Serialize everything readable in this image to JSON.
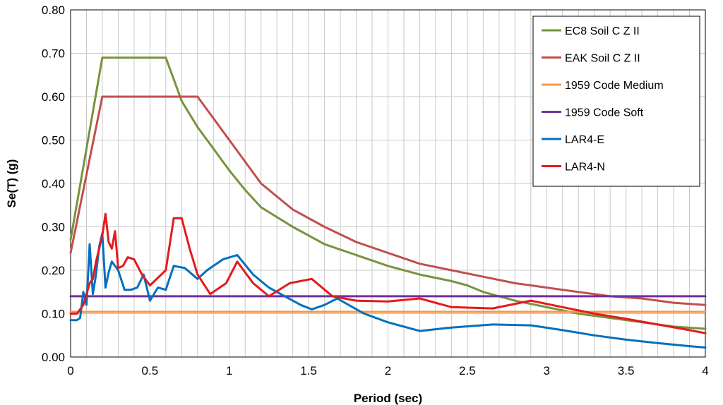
{
  "chart_data": {
    "type": "line",
    "title": "",
    "xlabel": "Period (sec)",
    "ylabel": "Se(T) (g)",
    "xlim": [
      0,
      4
    ],
    "ylim": [
      0,
      0.8
    ],
    "x_ticks": [
      0,
      0.5,
      1,
      1.5,
      2,
      2.5,
      3,
      3.5,
      4
    ],
    "x_tick_labels": [
      "0",
      "0.5",
      "1",
      "1.5",
      "2",
      "2.5",
      "3",
      "3.5",
      "4"
    ],
    "y_ticks": [
      0,
      0.1,
      0.2,
      0.3,
      0.4,
      0.5,
      0.6,
      0.7,
      0.8
    ],
    "y_tick_labels": [
      "0.00",
      "0.10",
      "0.20",
      "0.30",
      "0.40",
      "0.50",
      "0.60",
      "0.70",
      "0.80"
    ],
    "grid": true,
    "minor_x_step": 0.1,
    "legend_position": "top-right",
    "series": [
      {
        "name": "EC8 Soil C Z II",
        "color": "#77933C",
        "x": [
          0,
          0.2,
          0.6,
          0.65,
          0.7,
          0.8,
          0.9,
          1.0,
          1.1,
          1.2,
          1.4,
          1.6,
          1.8,
          2.0,
          2.2,
          2.4,
          2.5,
          2.6,
          2.8,
          3.0,
          3.2,
          3.4,
          3.6,
          3.8,
          4.0
        ],
        "y": [
          0.27,
          0.69,
          0.69,
          0.64,
          0.59,
          0.53,
          0.48,
          0.43,
          0.385,
          0.345,
          0.3,
          0.26,
          0.235,
          0.21,
          0.19,
          0.175,
          0.165,
          0.15,
          0.13,
          0.115,
          0.1,
          0.09,
          0.08,
          0.07,
          0.065
        ]
      },
      {
        "name": "EAK Soil C Z II",
        "color": "#C0504D",
        "x": [
          0,
          0.2,
          0.8,
          0.9,
          1.0,
          1.2,
          1.4,
          1.6,
          1.8,
          2.0,
          2.2,
          2.4,
          2.6,
          2.8,
          3.0,
          3.2,
          3.4,
          3.6,
          3.8,
          4.0
        ],
        "y": [
          0.24,
          0.6,
          0.6,
          0.55,
          0.5,
          0.4,
          0.34,
          0.3,
          0.265,
          0.24,
          0.215,
          0.2,
          0.185,
          0.17,
          0.16,
          0.15,
          0.14,
          0.135,
          0.125,
          0.12
        ]
      },
      {
        "name": "1959 Code Medium",
        "color": "#F79646",
        "x": [
          0,
          4.0
        ],
        "y": [
          0.104,
          0.104
        ]
      },
      {
        "name": "1959 Code Soft",
        "color": "#7030A0",
        "x": [
          0,
          4.0
        ],
        "y": [
          0.14,
          0.14
        ]
      },
      {
        "name": "LAR4-E",
        "color": "#0070C0",
        "x": [
          0,
          0.04,
          0.06,
          0.08,
          0.1,
          0.12,
          0.14,
          0.16,
          0.18,
          0.2,
          0.22,
          0.24,
          0.26,
          0.3,
          0.34,
          0.38,
          0.42,
          0.46,
          0.5,
          0.55,
          0.6,
          0.65,
          0.72,
          0.8,
          0.86,
          0.96,
          1.05,
          1.15,
          1.25,
          1.35,
          1.45,
          1.52,
          1.6,
          1.68,
          1.85,
          2.0,
          2.2,
          2.4,
          2.66,
          2.9,
          3.1,
          3.3,
          3.5,
          3.7,
          3.9,
          4.0
        ],
        "y": [
          0.085,
          0.085,
          0.09,
          0.15,
          0.12,
          0.26,
          0.145,
          0.19,
          0.255,
          0.285,
          0.16,
          0.195,
          0.22,
          0.2,
          0.155,
          0.155,
          0.16,
          0.19,
          0.13,
          0.16,
          0.155,
          0.21,
          0.205,
          0.18,
          0.2,
          0.225,
          0.235,
          0.19,
          0.16,
          0.14,
          0.12,
          0.11,
          0.12,
          0.135,
          0.1,
          0.08,
          0.06,
          0.068,
          0.075,
          0.073,
          0.062,
          0.05,
          0.04,
          0.032,
          0.025,
          0.022
        ]
      },
      {
        "name": "LAR4-N",
        "color": "#E41A1C",
        "x": [
          0,
          0.04,
          0.06,
          0.08,
          0.1,
          0.12,
          0.14,
          0.16,
          0.18,
          0.2,
          0.22,
          0.24,
          0.26,
          0.28,
          0.3,
          0.33,
          0.36,
          0.4,
          0.45,
          0.5,
          0.6,
          0.65,
          0.7,
          0.75,
          0.8,
          0.88,
          0.98,
          1.05,
          1.15,
          1.25,
          1.38,
          1.52,
          1.65,
          1.8,
          2.0,
          2.2,
          2.4,
          2.66,
          2.9,
          3.1,
          3.3,
          3.5,
          3.7,
          3.9,
          4.0
        ],
        "y": [
          0.1,
          0.1,
          0.11,
          0.12,
          0.145,
          0.17,
          0.18,
          0.22,
          0.25,
          0.28,
          0.33,
          0.265,
          0.25,
          0.29,
          0.205,
          0.21,
          0.23,
          0.225,
          0.19,
          0.165,
          0.2,
          0.32,
          0.32,
          0.25,
          0.19,
          0.145,
          0.17,
          0.22,
          0.17,
          0.14,
          0.17,
          0.18,
          0.14,
          0.13,
          0.128,
          0.135,
          0.115,
          0.112,
          0.13,
          0.115,
          0.1,
          0.088,
          0.075,
          0.062,
          0.055
        ]
      }
    ]
  }
}
